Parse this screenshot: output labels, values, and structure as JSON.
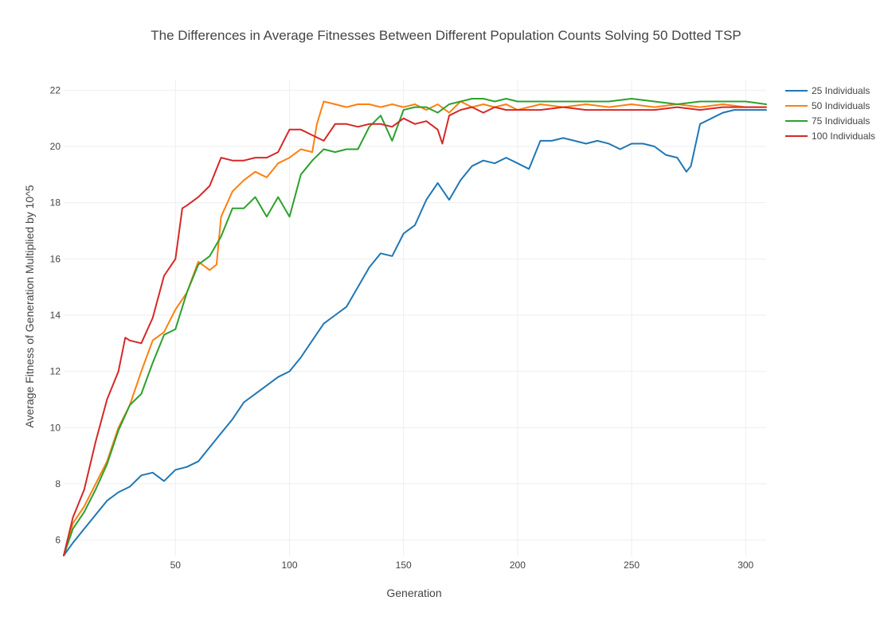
{
  "chart_data": {
    "type": "line",
    "title": "The Differences in Average Fitnesses Between Different Population Counts Solving 50 Dotted TSP",
    "xlabel": "Generation",
    "ylabel": "Average Fitness of Generation Multiplied by 10^5",
    "xlim": [
      1,
      309
    ],
    "ylim": [
      5.45,
      22.35
    ],
    "x_ticks": [
      50,
      100,
      150,
      200,
      250,
      300
    ],
    "y_ticks": [
      6,
      8,
      10,
      12,
      14,
      16,
      18,
      20,
      22
    ],
    "grid": true,
    "legend_position": "top-right",
    "series": [
      {
        "name": "25 Individuals",
        "color": "#1f77b4",
        "points": [
          [
            1,
            5.45
          ],
          [
            5,
            5.9
          ],
          [
            10,
            6.4
          ],
          [
            15,
            6.9
          ],
          [
            20,
            7.4
          ],
          [
            25,
            7.7
          ],
          [
            30,
            7.9
          ],
          [
            35,
            8.3
          ],
          [
            40,
            8.4
          ],
          [
            45,
            8.1
          ],
          [
            50,
            8.5
          ],
          [
            55,
            8.6
          ],
          [
            60,
            8.8
          ],
          [
            65,
            9.3
          ],
          [
            70,
            9.8
          ],
          [
            75,
            10.3
          ],
          [
            80,
            10.9
          ],
          [
            85,
            11.2
          ],
          [
            90,
            11.5
          ],
          [
            95,
            11.8
          ],
          [
            100,
            12.0
          ],
          [
            105,
            12.5
          ],
          [
            110,
            13.1
          ],
          [
            115,
            13.7
          ],
          [
            120,
            14.0
          ],
          [
            125,
            14.3
          ],
          [
            130,
            15.0
          ],
          [
            135,
            15.7
          ],
          [
            140,
            16.2
          ],
          [
            145,
            16.1
          ],
          [
            150,
            16.9
          ],
          [
            155,
            17.2
          ],
          [
            160,
            18.1
          ],
          [
            165,
            18.7
          ],
          [
            170,
            18.1
          ],
          [
            175,
            18.8
          ],
          [
            180,
            19.3
          ],
          [
            185,
            19.5
          ],
          [
            190,
            19.4
          ],
          [
            195,
            19.6
          ],
          [
            200,
            19.4
          ],
          [
            205,
            19.2
          ],
          [
            210,
            20.2
          ],
          [
            215,
            20.2
          ],
          [
            220,
            20.3
          ],
          [
            225,
            20.2
          ],
          [
            230,
            20.1
          ],
          [
            235,
            20.2
          ],
          [
            240,
            20.1
          ],
          [
            245,
            19.9
          ],
          [
            250,
            20.1
          ],
          [
            255,
            20.1
          ],
          [
            260,
            20.0
          ],
          [
            265,
            19.7
          ],
          [
            270,
            19.6
          ],
          [
            274,
            19.1
          ],
          [
            276,
            19.3
          ],
          [
            280,
            20.8
          ],
          [
            285,
            21.0
          ],
          [
            290,
            21.2
          ],
          [
            295,
            21.3
          ],
          [
            300,
            21.3
          ],
          [
            305,
            21.3
          ],
          [
            309,
            21.3
          ]
        ]
      },
      {
        "name": "50 Individuals",
        "color": "#ff7f0e",
        "points": [
          [
            1,
            5.45
          ],
          [
            5,
            6.6
          ],
          [
            10,
            7.2
          ],
          [
            15,
            8.0
          ],
          [
            20,
            8.8
          ],
          [
            25,
            10.0
          ],
          [
            30,
            10.8
          ],
          [
            35,
            12.0
          ],
          [
            40,
            13.1
          ],
          [
            45,
            13.4
          ],
          [
            50,
            14.2
          ],
          [
            55,
            14.8
          ],
          [
            60,
            15.9
          ],
          [
            65,
            15.6
          ],
          [
            68,
            15.8
          ],
          [
            70,
            17.5
          ],
          [
            75,
            18.4
          ],
          [
            80,
            18.8
          ],
          [
            85,
            19.1
          ],
          [
            90,
            18.9
          ],
          [
            95,
            19.4
          ],
          [
            100,
            19.6
          ],
          [
            105,
            19.9
          ],
          [
            110,
            19.8
          ],
          [
            112,
            20.8
          ],
          [
            115,
            21.6
          ],
          [
            120,
            21.5
          ],
          [
            125,
            21.4
          ],
          [
            130,
            21.5
          ],
          [
            135,
            21.5
          ],
          [
            140,
            21.4
          ],
          [
            145,
            21.5
          ],
          [
            150,
            21.4
          ],
          [
            155,
            21.5
          ],
          [
            160,
            21.3
          ],
          [
            165,
            21.5
          ],
          [
            170,
            21.2
          ],
          [
            175,
            21.6
          ],
          [
            180,
            21.4
          ],
          [
            185,
            21.5
          ],
          [
            190,
            21.4
          ],
          [
            195,
            21.5
          ],
          [
            200,
            21.3
          ],
          [
            210,
            21.5
          ],
          [
            220,
            21.4
          ],
          [
            230,
            21.5
          ],
          [
            240,
            21.4
          ],
          [
            250,
            21.5
          ],
          [
            260,
            21.4
          ],
          [
            270,
            21.5
          ],
          [
            280,
            21.4
          ],
          [
            290,
            21.5
          ],
          [
            300,
            21.4
          ],
          [
            309,
            21.4
          ]
        ]
      },
      {
        "name": "75 Individuals",
        "color": "#2ca02c",
        "points": [
          [
            1,
            5.45
          ],
          [
            5,
            6.4
          ],
          [
            10,
            7.0
          ],
          [
            15,
            7.8
          ],
          [
            20,
            8.7
          ],
          [
            25,
            9.9
          ],
          [
            30,
            10.8
          ],
          [
            35,
            11.2
          ],
          [
            40,
            12.3
          ],
          [
            45,
            13.3
          ],
          [
            50,
            13.5
          ],
          [
            55,
            14.8
          ],
          [
            60,
            15.8
          ],
          [
            65,
            16.1
          ],
          [
            70,
            16.8
          ],
          [
            75,
            17.8
          ],
          [
            80,
            17.8
          ],
          [
            85,
            18.2
          ],
          [
            90,
            17.5
          ],
          [
            95,
            18.2
          ],
          [
            100,
            17.5
          ],
          [
            105,
            19.0
          ],
          [
            110,
            19.5
          ],
          [
            115,
            19.9
          ],
          [
            120,
            19.8
          ],
          [
            125,
            19.9
          ],
          [
            130,
            19.9
          ],
          [
            135,
            20.7
          ],
          [
            140,
            21.1
          ],
          [
            145,
            20.2
          ],
          [
            150,
            21.3
          ],
          [
            155,
            21.4
          ],
          [
            160,
            21.4
          ],
          [
            165,
            21.2
          ],
          [
            170,
            21.5
          ],
          [
            175,
            21.6
          ],
          [
            180,
            21.7
          ],
          [
            185,
            21.7
          ],
          [
            190,
            21.6
          ],
          [
            195,
            21.7
          ],
          [
            200,
            21.6
          ],
          [
            210,
            21.6
          ],
          [
            220,
            21.6
          ],
          [
            230,
            21.6
          ],
          [
            240,
            21.6
          ],
          [
            250,
            21.7
          ],
          [
            260,
            21.6
          ],
          [
            270,
            21.5
          ],
          [
            280,
            21.6
          ],
          [
            290,
            21.6
          ],
          [
            300,
            21.6
          ],
          [
            309,
            21.5
          ]
        ]
      },
      {
        "name": "100 Individuals",
        "color": "#d62728",
        "points": [
          [
            1,
            5.45
          ],
          [
            5,
            6.8
          ],
          [
            10,
            7.8
          ],
          [
            15,
            9.5
          ],
          [
            20,
            11.0
          ],
          [
            25,
            12.0
          ],
          [
            28,
            13.2
          ],
          [
            30,
            13.1
          ],
          [
            35,
            13.0
          ],
          [
            40,
            13.9
          ],
          [
            45,
            15.4
          ],
          [
            50,
            16.0
          ],
          [
            53,
            17.8
          ],
          [
            55,
            17.9
          ],
          [
            60,
            18.2
          ],
          [
            65,
            18.6
          ],
          [
            70,
            19.6
          ],
          [
            75,
            19.5
          ],
          [
            80,
            19.5
          ],
          [
            85,
            19.6
          ],
          [
            90,
            19.6
          ],
          [
            95,
            19.8
          ],
          [
            100,
            20.6
          ],
          [
            105,
            20.6
          ],
          [
            110,
            20.4
          ],
          [
            115,
            20.2
          ],
          [
            120,
            20.8
          ],
          [
            125,
            20.8
          ],
          [
            130,
            20.7
          ],
          [
            135,
            20.8
          ],
          [
            140,
            20.8
          ],
          [
            145,
            20.7
          ],
          [
            150,
            21.0
          ],
          [
            155,
            20.8
          ],
          [
            160,
            20.9
          ],
          [
            165,
            20.6
          ],
          [
            167,
            20.1
          ],
          [
            170,
            21.1
          ],
          [
            175,
            21.3
          ],
          [
            180,
            21.4
          ],
          [
            185,
            21.2
          ],
          [
            190,
            21.4
          ],
          [
            195,
            21.3
          ],
          [
            200,
            21.3
          ],
          [
            210,
            21.3
          ],
          [
            220,
            21.4
          ],
          [
            230,
            21.3
          ],
          [
            240,
            21.3
          ],
          [
            250,
            21.3
          ],
          [
            260,
            21.3
          ],
          [
            270,
            21.4
          ],
          [
            280,
            21.3
          ],
          [
            290,
            21.4
          ],
          [
            300,
            21.4
          ],
          [
            309,
            21.4
          ]
        ]
      }
    ]
  }
}
